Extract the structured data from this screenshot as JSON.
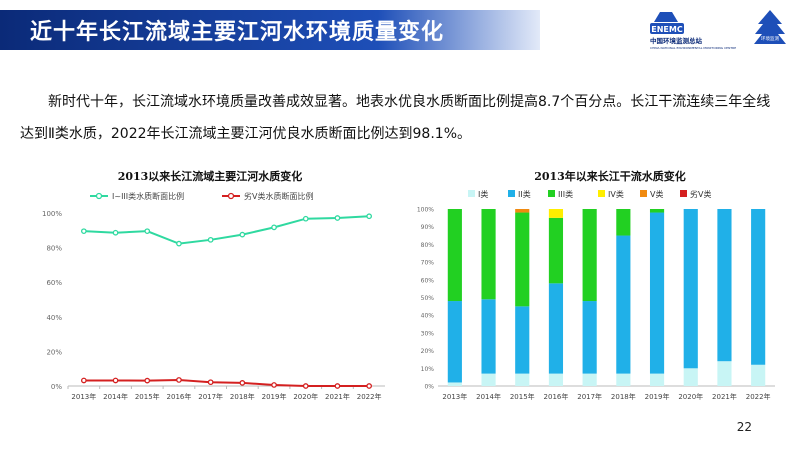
{
  "header": {
    "title": "近十年长江流域主要江河水环境质量变化",
    "logo_org": "中国环境监测总站",
    "logo_org_en": "CHINA NATIONAL ENVIRONMENTAL MONITORING CENTRE",
    "logo_badge": "ENEMC",
    "logo_right": "环境监测"
  },
  "body": {
    "paragraph": "新时代十年，长江流域水环境质量改善成效显著。地表水优良水质断面比例提高8.7个百分点。长江干流连续三年全线达到Ⅱ类水质，2022年长江流域主要江河优良水质断面比例达到98.1%。"
  },
  "page_number": "22",
  "colors": {
    "title_bg": "#0b2a78",
    "line_good": "#2fd9a0",
    "line_bad": "#d42020",
    "class_I": "#c8f5f5",
    "class_II": "#20b0e8",
    "class_III": "#22d022",
    "class_IV": "#ffee00",
    "class_V": "#f08a10",
    "class_worse": "#d42020"
  },
  "chart_data": [
    {
      "type": "line",
      "title": "2013以来长江流域主要江河水质变化",
      "categories": [
        "2013年",
        "2014年",
        "2015年",
        "2016年",
        "2017年",
        "2018年",
        "2019年",
        "2020年",
        "2021年",
        "2022年"
      ],
      "series": [
        {
          "name": "I~III类水质断面比例",
          "values": [
            89.5,
            88.6,
            89.5,
            82.3,
            84.5,
            87.5,
            91.7,
            96.7,
            97.1,
            98.1
          ]
        },
        {
          "name": "劣V类水质断面比例",
          "values": [
            3.2,
            3.2,
            3.1,
            3.5,
            2.2,
            1.8,
            0.6,
            0.0,
            0.0,
            0.0
          ]
        }
      ],
      "ylim": [
        0,
        100
      ],
      "yticks": [
        "0%",
        "20%",
        "40%",
        "60%",
        "80%",
        "100%"
      ],
      "legend": "top",
      "grid": false
    },
    {
      "type": "bar",
      "stacked": true,
      "title": "2013年以来长江干流水质变化",
      "categories": [
        "2013年",
        "2014年",
        "2015年",
        "2016年",
        "2017年",
        "2018年",
        "2019年",
        "2020年",
        "2021年",
        "2022年"
      ],
      "series": [
        {
          "name": "I类",
          "values": [
            2,
            7,
            7,
            7,
            7,
            7,
            7,
            10,
            14,
            12
          ]
        },
        {
          "name": "II类",
          "values": [
            46,
            42,
            38,
            51,
            41,
            78,
            91,
            90,
            86,
            88
          ]
        },
        {
          "name": "III类",
          "values": [
            52,
            51,
            53,
            37,
            52,
            15,
            2,
            0,
            0,
            0
          ]
        },
        {
          "name": "IV类",
          "values": [
            0,
            0,
            0,
            5,
            0,
            0,
            0,
            0,
            0,
            0
          ]
        },
        {
          "name": "V类",
          "values": [
            0,
            0,
            2,
            0,
            0,
            0,
            0,
            0,
            0,
            0
          ]
        },
        {
          "name": "劣V类",
          "values": [
            0,
            0,
            0,
            0,
            0,
            0,
            0,
            0,
            0,
            0
          ]
        }
      ],
      "ylim": [
        0,
        100
      ],
      "yticks": [
        "0%",
        "10%",
        "20%",
        "30%",
        "40%",
        "50%",
        "60%",
        "70%",
        "80%",
        "90%",
        "100%"
      ],
      "legend": "top",
      "grid": false
    }
  ]
}
